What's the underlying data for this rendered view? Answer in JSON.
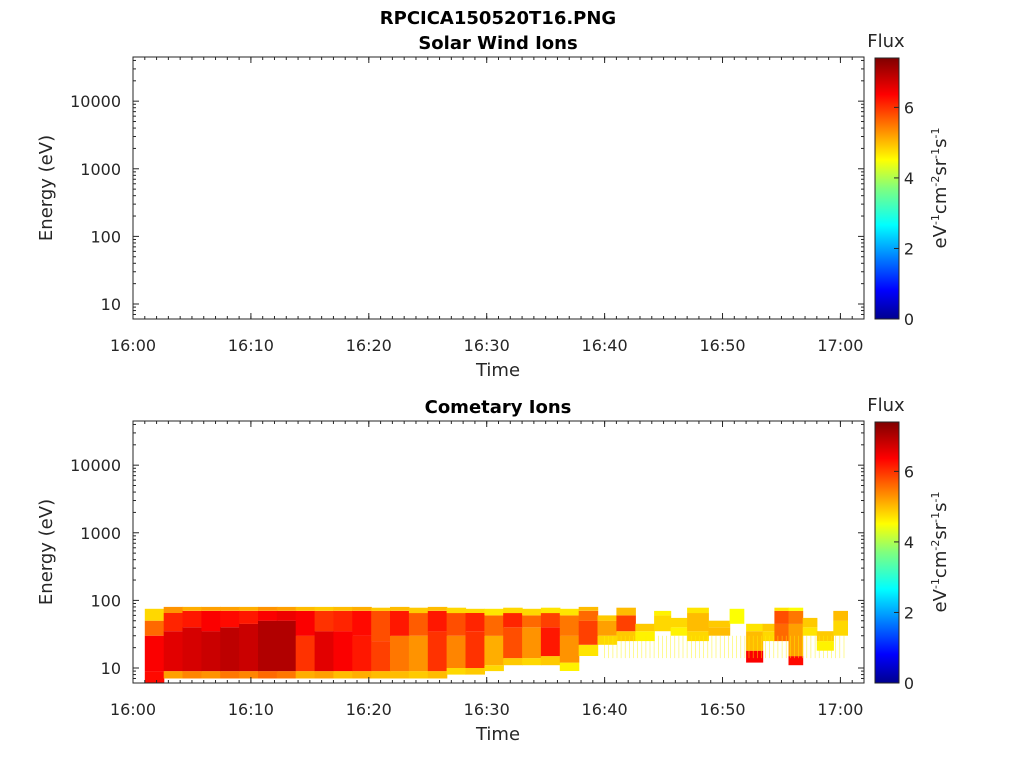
{
  "figure_title": "RPCICA150520T16.PNG",
  "chart_data": [
    {
      "type": "heatmap",
      "title": "Solar Wind Ions",
      "xlabel": "Time",
      "ylabel": "Energy (eV)",
      "x_scale": "time",
      "x_ticks": [
        "16:00",
        "16:10",
        "16:20",
        "16:30",
        "16:40",
        "16:50",
        "17:00"
      ],
      "xlim_minutes": [
        0,
        62
      ],
      "y_scale": "log",
      "y_ticks": [
        "10",
        "100",
        "1000",
        "10000"
      ],
      "ylim": [
        6,
        45000
      ],
      "colorbar": {
        "label": "Flux",
        "unit_label": "eV-1cm-2sr-1s-1",
        "ticks": [
          "0",
          "2",
          "4",
          "6"
        ],
        "range": [
          0,
          7.4
        ],
        "colormap": "jet"
      },
      "columns": []
    },
    {
      "type": "heatmap",
      "title": "Cometary Ions",
      "xlabel": "Time",
      "ylabel": "Energy (eV)",
      "x_scale": "time",
      "x_ticks": [
        "16:00",
        "16:10",
        "16:20",
        "16:30",
        "16:40",
        "16:50",
        "17:00"
      ],
      "xlim_minutes": [
        0,
        62
      ],
      "y_scale": "log",
      "y_ticks": [
        "10",
        "100",
        "1000",
        "10000"
      ],
      "ylim": [
        6,
        45000
      ],
      "colorbar": {
        "label": "Flux",
        "unit_label": "eV-1cm-2sr-1s-1",
        "ticks": [
          "0",
          "2",
          "4",
          "6"
        ],
        "range": [
          0,
          7.4
        ],
        "colormap": "jet"
      },
      "columns": [
        {
          "t": [
            1.0,
            2.6
          ],
          "cells": [
            [
              6,
              9,
              6.3
            ],
            [
              9,
              30,
              6.4
            ],
            [
              30,
              50,
              5.6
            ],
            [
              50,
              75,
              4.8
            ]
          ]
        },
        {
          "t": [
            2.6,
            4.2
          ],
          "cells": [
            [
              7,
              9,
              5.2
            ],
            [
              9,
              35,
              6.6
            ],
            [
              35,
              65,
              6.1
            ],
            [
              65,
              80,
              5.3
            ]
          ]
        },
        {
          "t": [
            4.2,
            5.8
          ],
          "cells": [
            [
              7,
              9,
              5.4
            ],
            [
              9,
              40,
              6.7
            ],
            [
              40,
              70,
              6.2
            ],
            [
              70,
              80,
              5.1
            ]
          ]
        },
        {
          "t": [
            5.8,
            7.4
          ],
          "cells": [
            [
              7,
              9,
              5.3
            ],
            [
              9,
              35,
              6.8
            ],
            [
              35,
              70,
              6.4
            ],
            [
              70,
              80,
              5.2
            ]
          ]
        },
        {
          "t": [
            7.4,
            9.0
          ],
          "cells": [
            [
              7,
              9,
              5.5
            ],
            [
              9,
              40,
              6.9
            ],
            [
              40,
              70,
              6.3
            ],
            [
              70,
              80,
              5.2
            ]
          ]
        },
        {
          "t": [
            9.0,
            10.6
          ],
          "cells": [
            [
              7,
              9,
              5.4
            ],
            [
              9,
              45,
              6.8
            ],
            [
              45,
              70,
              6.2
            ],
            [
              70,
              80,
              5.1
            ]
          ]
        },
        {
          "t": [
            10.6,
            12.2
          ],
          "cells": [
            [
              7,
              9,
              5.6
            ],
            [
              9,
              50,
              7.0
            ],
            [
              50,
              70,
              6.4
            ],
            [
              70,
              80,
              5.3
            ]
          ]
        },
        {
          "t": [
            12.2,
            13.8
          ],
          "cells": [
            [
              7,
              9,
              5.5
            ],
            [
              9,
              50,
              7.0
            ],
            [
              50,
              70,
              6.5
            ],
            [
              70,
              80,
              5.2
            ]
          ]
        },
        {
          "t": [
            13.8,
            15.4
          ],
          "cells": [
            [
              7,
              9,
              5.1
            ],
            [
              9,
              30,
              6.0
            ],
            [
              30,
              70,
              6.4
            ],
            [
              70,
              80,
              5.0
            ]
          ]
        },
        {
          "t": [
            15.4,
            17.0
          ],
          "cells": [
            [
              7,
              9,
              5.2
            ],
            [
              9,
              35,
              6.6
            ],
            [
              35,
              70,
              6.0
            ],
            [
              70,
              80,
              4.9
            ]
          ]
        },
        {
          "t": [
            17.0,
            18.6
          ],
          "cells": [
            [
              7,
              9,
              5.0
            ],
            [
              9,
              35,
              6.4
            ],
            [
              35,
              70,
              6.1
            ],
            [
              70,
              80,
              5.0
            ]
          ]
        },
        {
          "t": [
            18.6,
            20.2
          ],
          "cells": [
            [
              7,
              9,
              5.1
            ],
            [
              9,
              30,
              6.2
            ],
            [
              30,
              70,
              6.3
            ],
            [
              70,
              80,
              5.1
            ]
          ]
        },
        {
          "t": [
            20.2,
            21.8
          ],
          "cells": [
            [
              7,
              9,
              5.0
            ],
            [
              9,
              25,
              5.9
            ],
            [
              25,
              70,
              5.8
            ],
            [
              70,
              78,
              4.9
            ]
          ]
        },
        {
          "t": [
            21.8,
            23.4
          ],
          "cells": [
            [
              7,
              9,
              5.0
            ],
            [
              9,
              30,
              5.5
            ],
            [
              30,
              70,
              6.2
            ],
            [
              70,
              80,
              5.0
            ]
          ]
        },
        {
          "t": [
            23.4,
            25.0
          ],
          "cells": [
            [
              7,
              9,
              4.9
            ],
            [
              9,
              30,
              5.3
            ],
            [
              30,
              65,
              5.7
            ],
            [
              65,
              78,
              4.9
            ]
          ]
        },
        {
          "t": [
            25.0,
            26.6
          ],
          "cells": [
            [
              7,
              9,
              5.0
            ],
            [
              9,
              35,
              6.0
            ],
            [
              35,
              70,
              6.2
            ],
            [
              70,
              80,
              5.0
            ]
          ]
        },
        {
          "t": [
            26.6,
            28.2
          ],
          "cells": [
            [
              8,
              10,
              4.8
            ],
            [
              10,
              30,
              5.4
            ],
            [
              30,
              65,
              5.8
            ],
            [
              65,
              78,
              4.8
            ]
          ]
        },
        {
          "t": [
            28.2,
            29.8
          ],
          "cells": [
            [
              8,
              10,
              4.9
            ],
            [
              10,
              35,
              6.0
            ],
            [
              35,
              65,
              6.1
            ],
            [
              65,
              75,
              4.8
            ]
          ]
        },
        {
          "t": [
            29.8,
            31.4
          ],
          "cells": [
            [
              9,
              11,
              4.8
            ],
            [
              11,
              30,
              5.1
            ],
            [
              30,
              60,
              5.6
            ],
            [
              60,
              75,
              4.7
            ]
          ]
        },
        {
          "t": [
            31.4,
            33.0
          ],
          "cells": [
            [
              11,
              14,
              4.9
            ],
            [
              14,
              40,
              5.8
            ],
            [
              40,
              65,
              6.1
            ],
            [
              65,
              78,
              4.8
            ]
          ]
        },
        {
          "t": [
            33.0,
            34.6
          ],
          "cells": [
            [
              11,
              14,
              4.8
            ],
            [
              14,
              40,
              5.3
            ],
            [
              40,
              60,
              5.6
            ],
            [
              60,
              75,
              4.8
            ]
          ]
        },
        {
          "t": [
            34.6,
            36.2
          ],
          "cells": [
            [
              11,
              15,
              4.9
            ],
            [
              15,
              40,
              6.2
            ],
            [
              40,
              65,
              5.9
            ],
            [
              65,
              78,
              4.7
            ]
          ]
        },
        {
          "t": [
            36.2,
            37.8
          ],
          "cells": [
            [
              9,
              12,
              4.6
            ],
            [
              12,
              30,
              5.3
            ],
            [
              30,
              60,
              5.5
            ],
            [
              60,
              75,
              4.7
            ]
          ]
        },
        {
          "t": [
            37.8,
            39.4
          ],
          "cells": [
            [
              15,
              22,
              4.7
            ],
            [
              22,
              50,
              5.9
            ],
            [
              50,
              70,
              5.6
            ],
            [
              70,
              80,
              5.0
            ]
          ]
        },
        {
          "t": [
            39.4,
            41.0
          ],
          "cells": [
            [
              22,
              30,
              4.8
            ],
            [
              30,
              50,
              5.2
            ],
            [
              50,
              60,
              4.9
            ]
          ]
        },
        {
          "t": [
            41.0,
            42.6
          ],
          "cells": [
            [
              25,
              35,
              4.9
            ],
            [
              35,
              60,
              5.9
            ],
            [
              60,
              78,
              5.0
            ]
          ]
        },
        {
          "t": [
            42.6,
            44.2
          ],
          "cells": [
            [
              25,
              35,
              4.6
            ],
            [
              35,
              45,
              4.9
            ]
          ]
        },
        {
          "t": [
            44.2,
            45.6
          ],
          "cells": [
            [
              35,
              60,
              4.8
            ],
            [
              60,
              70,
              4.6
            ]
          ]
        },
        {
          "t": [
            45.6,
            47.0
          ],
          "cells": [
            [
              30,
              40,
              4.6
            ],
            [
              40,
              55,
              4.8
            ]
          ]
        },
        {
          "t": [
            47.0,
            48.8
          ],
          "cells": [
            [
              25,
              35,
              4.8
            ],
            [
              35,
              65,
              5.0
            ],
            [
              65,
              78,
              4.7
            ]
          ]
        },
        {
          "t": [
            48.8,
            50.6
          ],
          "cells": [
            [
              30,
              40,
              5.0
            ],
            [
              40,
              50,
              4.9
            ]
          ]
        },
        {
          "t": [
            50.6,
            51.8
          ],
          "cells": [
            [
              45,
              75,
              4.5
            ]
          ]
        },
        {
          "t": [
            52.0,
            53.4
          ],
          "cells": [
            [
              12,
              18,
              6.4
            ],
            [
              18,
              35,
              5.0
            ],
            [
              35,
              45,
              4.7
            ]
          ]
        },
        {
          "t": [
            53.4,
            54.4
          ],
          "cells": [
            [
              25,
              35,
              4.8
            ],
            [
              35,
              45,
              4.9
            ]
          ]
        },
        {
          "t": [
            54.4,
            55.6
          ],
          "cells": [
            [
              25,
              45,
              5.6
            ],
            [
              45,
              70,
              5.8
            ],
            [
              70,
              78,
              4.7
            ]
          ]
        },
        {
          "t": [
            55.6,
            56.8
          ],
          "cells": [
            [
              11,
              15,
              6.3
            ],
            [
              15,
              45,
              5.2
            ],
            [
              45,
              70,
              5.5
            ],
            [
              70,
              78,
              4.5
            ]
          ]
        },
        {
          "t": [
            56.8,
            58.0
          ],
          "cells": [
            [
              30,
              40,
              4.7
            ],
            [
              40,
              55,
              4.9
            ]
          ]
        },
        {
          "t": [
            58.0,
            59.4
          ],
          "cells": [
            [
              18,
              25,
              4.6
            ],
            [
              25,
              35,
              4.9
            ]
          ]
        },
        {
          "t": [
            59.4,
            60.6
          ],
          "cells": [
            [
              30,
              50,
              4.8
            ],
            [
              50,
              70,
              5.0
            ]
          ]
        }
      ],
      "sparse_speckle": {
        "t_from": 40.0,
        "t_to": 60.5,
        "ylo": 14,
        "yhi": 30,
        "value": 4.6
      }
    }
  ]
}
